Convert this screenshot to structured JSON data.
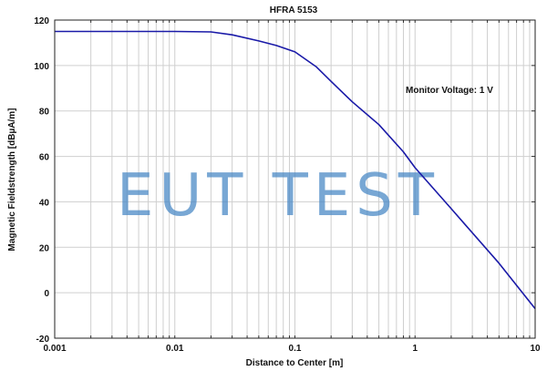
{
  "chart_data": {
    "type": "line",
    "title": "HFRA 5153",
    "xlabel": "Distance to Center [m]",
    "ylabel": "Magnetic Fieldstrength [dBµA/m]",
    "xscale": "log",
    "xlim": [
      0.001,
      10
    ],
    "ylim": [
      -20,
      120
    ],
    "xticks": [
      "0.001",
      "0.01",
      "0.1",
      "1",
      "10"
    ],
    "yticks": [
      "-20",
      "0",
      "20",
      "40",
      "60",
      "80",
      "100",
      "120"
    ],
    "grid": true,
    "annotation": "Monitor Voltage: 1 V",
    "watermark": "EUT TEST",
    "line_color": "#1a1aa8",
    "series": [
      {
        "x": [
          0.001,
          0.005,
          0.01,
          0.02,
          0.03,
          0.05,
          0.07,
          0.1,
          0.15,
          0.2,
          0.3,
          0.5,
          0.8,
          1,
          2,
          5,
          10
        ],
        "y": [
          115,
          115,
          115,
          114.8,
          113.5,
          110.8,
          108.8,
          106,
          99.5,
          93,
          84,
          74,
          62,
          55,
          37,
          13,
          -7
        ]
      }
    ]
  }
}
